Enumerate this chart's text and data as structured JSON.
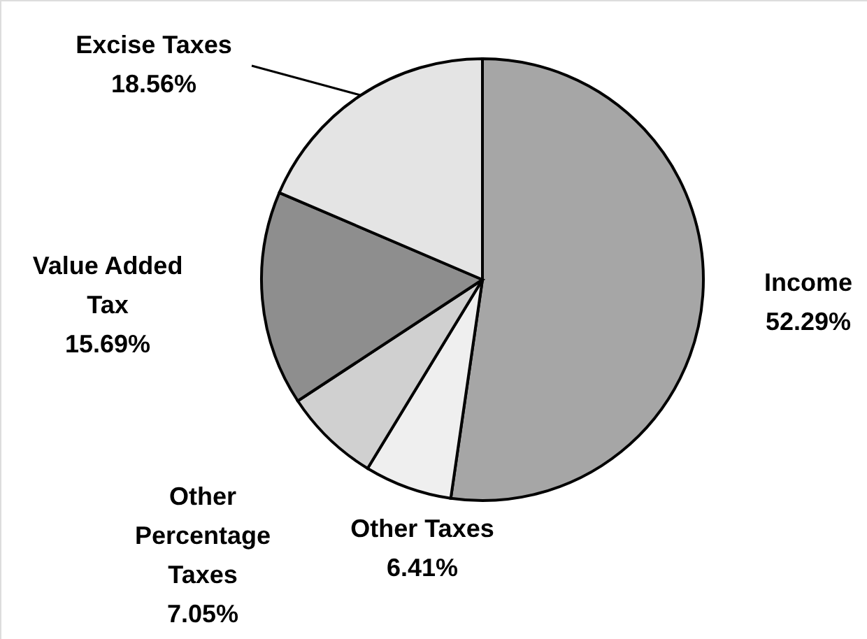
{
  "chart_data": {
    "type": "pie",
    "categories": [
      "Income",
      "Other Taxes",
      "Other Percentage Taxes",
      "Value Added Tax",
      "Excise Taxes"
    ],
    "values": [
      52.29,
      6.41,
      7.05,
      15.69,
      18.56
    ],
    "value_labels": [
      "52.29%",
      "6.41%",
      "7.05%",
      "15.69%",
      "18.56%"
    ],
    "colors": [
      "#a6a6a6",
      "#efefef",
      "#d0d0d0",
      "#8e8e8e",
      "#e4e4e4"
    ]
  }
}
